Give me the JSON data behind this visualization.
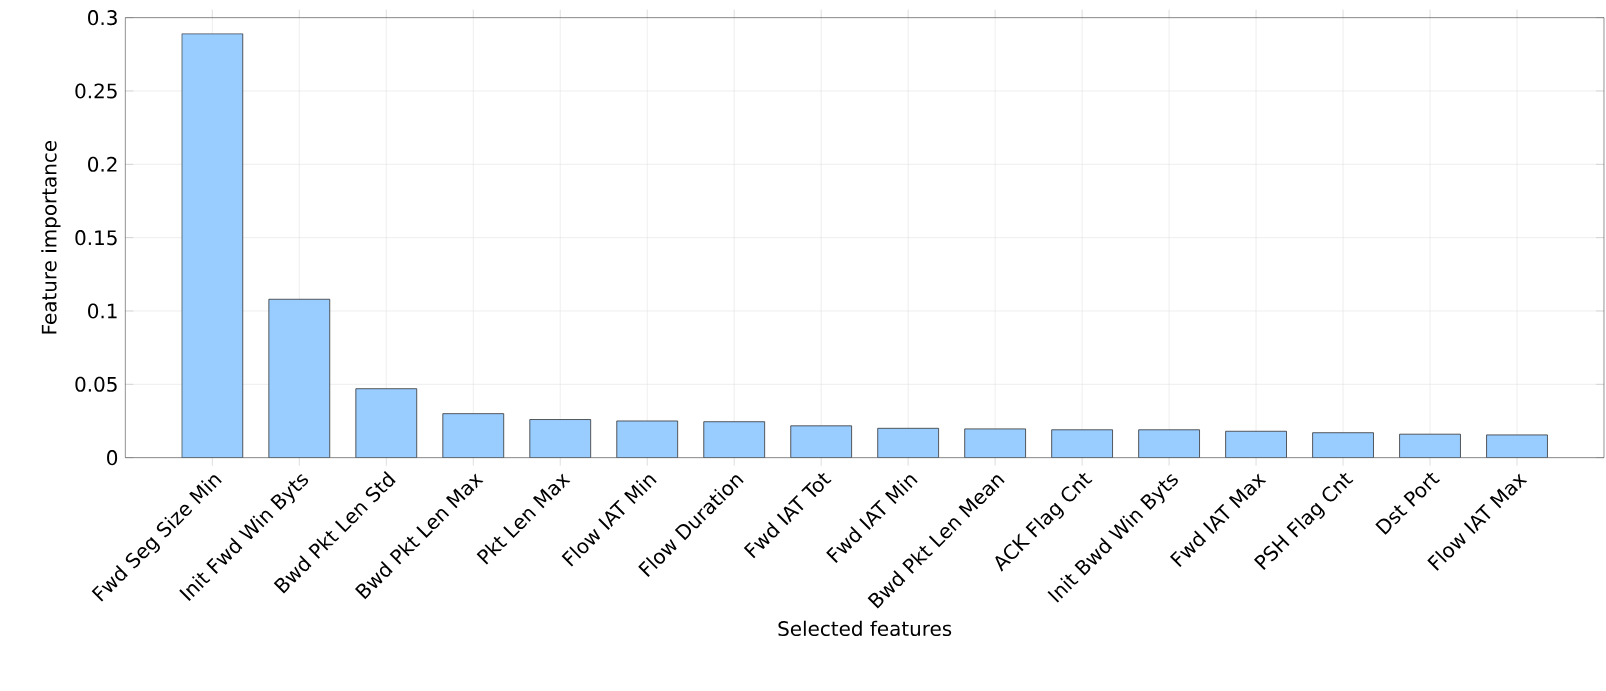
{
  "chart_data": {
    "type": "bar",
    "xlabel": "Selected features",
    "ylabel": "Feature importance",
    "categories": [
      "Fwd Seg Size Min",
      "Init Fwd Win Byts",
      "Bwd Pkt Len Std",
      "Bwd Pkt Len Max",
      "Pkt Len Max",
      "Flow IAT Min",
      "Flow Duration",
      "Fwd IAT Tot",
      "Fwd IAT Min",
      "Bwd Pkt Len Mean",
      "ACK Flag Cnt",
      "Init Bwd Win Byts",
      "Fwd IAT Max",
      "PSH Flag Cnt",
      "Dst Port",
      "Flow IAT Max"
    ],
    "values": [
      0.289,
      0.108,
      0.047,
      0.03,
      0.026,
      0.025,
      0.0245,
      0.0217,
      0.02,
      0.0196,
      0.019,
      0.019,
      0.018,
      0.017,
      0.016,
      0.0155
    ],
    "color": "#99ccff",
    "ylim": [
      0,
      0.3
    ],
    "yticks": [
      0,
      0.05,
      0.1,
      0.15,
      0.2,
      0.25,
      0.3
    ],
    "grid": true
  }
}
